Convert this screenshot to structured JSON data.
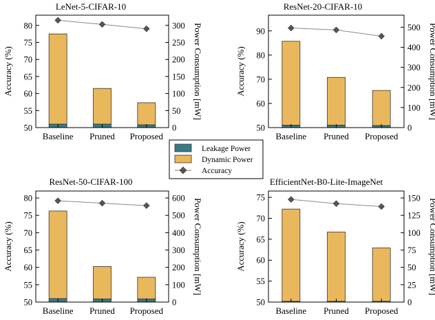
{
  "chart_data": [
    {
      "type": "bar",
      "title": "LeNet-5-CIFAR-10",
      "categories": [
        "Baseline",
        "Pruned",
        "Proposed"
      ],
      "ylabel": "Accuracy (%)",
      "y2label": "Power Consumption [mW]",
      "ylim": [
        50,
        83
      ],
      "y2lim": [
        0,
        330
      ],
      "yticks": [
        50,
        55,
        60,
        65,
        70,
        75,
        80
      ],
      "y2ticks": [
        0,
        50,
        100,
        150,
        200,
        250,
        300
      ],
      "series": [
        {
          "name": "Leakage Power",
          "axis": "right",
          "values": [
            10,
            10,
            8
          ]
        },
        {
          "name": "Dynamic Power",
          "axis": "right",
          "values": [
            265,
            105,
            65
          ]
        },
        {
          "name": "Accuracy",
          "axis": "left",
          "values": [
            81.5,
            80.3,
            79.0
          ]
        }
      ]
    },
    {
      "type": "bar",
      "title": "ResNet-20-CIFAR-10",
      "categories": [
        "Baseline",
        "Pruned",
        "Proposed"
      ],
      "ylabel": "Accuracy (%)",
      "y2label": "Power Consumption [mW]",
      "ylim": [
        50,
        96.5
      ],
      "y2lim": [
        0,
        560
      ],
      "yticks": [
        50,
        60,
        70,
        80,
        90
      ],
      "y2ticks": [
        0,
        100,
        200,
        300,
        400,
        500
      ],
      "series": [
        {
          "name": "Leakage Power",
          "axis": "right",
          "values": [
            12,
            12,
            10
          ]
        },
        {
          "name": "Dynamic Power",
          "axis": "right",
          "values": [
            418,
            238,
            175
          ]
        },
        {
          "name": "Accuracy",
          "axis": "left",
          "values": [
            91.2,
            90.4,
            87.8
          ]
        }
      ]
    },
    {
      "type": "bar",
      "title": "ResNet-50-CIFAR-100",
      "categories": [
        "Baseline",
        "Pruned",
        "Proposed"
      ],
      "ylabel": "Accuracy (%)",
      "y2label": "Power Consumption [mW]",
      "ylim": [
        50,
        82
      ],
      "y2lim": [
        0,
        640
      ],
      "yticks": [
        50,
        55,
        60,
        65,
        70,
        75,
        80
      ],
      "y2ticks": [
        0,
        100,
        200,
        300,
        400,
        500,
        600
      ],
      "series": [
        {
          "name": "Leakage Power",
          "axis": "right",
          "values": [
            20,
            18,
            18
          ]
        },
        {
          "name": "Dynamic Power",
          "axis": "right",
          "values": [
            505,
            187,
            125
          ]
        },
        {
          "name": "Accuracy",
          "axis": "left",
          "values": [
            79.2,
            78.5,
            77.8
          ]
        }
      ]
    },
    {
      "type": "bar",
      "title": "EfficientNet-B0-Lite-ImageNet",
      "categories": [
        "Baseline",
        "Pruned",
        "Proposed"
      ],
      "ylabel": "Accuracy (%)",
      "y2label": "Power Consumption [mW]",
      "ylim": [
        50,
        76.5
      ],
      "y2lim": [
        0,
        160
      ],
      "yticks": [
        50,
        55,
        60,
        65,
        70,
        75
      ],
      "y2ticks": [
        0,
        25,
        50,
        75,
        100,
        125,
        150
      ],
      "series": [
        {
          "name": "Leakage Power",
          "axis": "right",
          "values": [
            1,
            1,
            1
          ]
        },
        {
          "name": "Dynamic Power",
          "axis": "right",
          "values": [
            133,
            100,
            77
          ]
        },
        {
          "name": "Accuracy",
          "axis": "left",
          "values": [
            74.5,
            73.5,
            72.8
          ]
        }
      ]
    }
  ],
  "legend": {
    "items": [
      {
        "label": "Leakage Power",
        "kind": "bar",
        "color": "#3a7a86"
      },
      {
        "label": "Dynamic Power",
        "kind": "bar",
        "color": "#eab85c"
      },
      {
        "label": "Accuracy",
        "kind": "line-marker",
        "color": "#555555"
      }
    ]
  },
  "colors": {
    "leakage": "#3a7a86",
    "dynamic": "#eab85c",
    "accuracy_line": "#8a8a8a",
    "accuracy_marker": "#555555",
    "bar_edge": "#333333"
  }
}
